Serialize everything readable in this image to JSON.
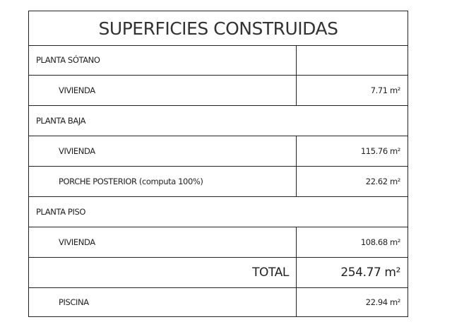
{
  "title": "SUPERFICIES CONSTRUIDAS",
  "rows": [
    {
      "label": "PLANTA SÓTANO",
      "value": "",
      "type": "section-split"
    },
    {
      "label": "VIVIENDA",
      "value": "7.71 m²",
      "type": "item"
    },
    {
      "label": "PLANTA BAJA",
      "value": "",
      "type": "section"
    },
    {
      "label": "VIVIENDA",
      "value": "115.76 m²",
      "type": "item"
    },
    {
      "label": "PORCHE POSTERIOR (computa 100%)",
      "value": "22.62 m²",
      "type": "item"
    },
    {
      "label": "PLANTA PISO",
      "value": "",
      "type": "section"
    },
    {
      "label": "VIVIENDA",
      "value": "108.68 m²",
      "type": "item"
    },
    {
      "label": "TOTAL",
      "value": "254.77 m²",
      "type": "total"
    },
    {
      "label": "PISCINA",
      "value": "22.94 m²",
      "type": "item"
    }
  ]
}
